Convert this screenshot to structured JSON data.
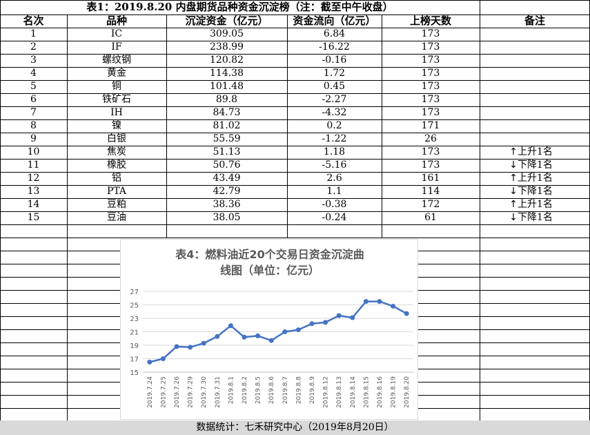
{
  "title": "表1：2019.8.20 内盘期货品种资金沉淀榜（注：截至中午收盘）",
  "headers": [
    "名次",
    "品种",
    "沉淀资金（亿元）",
    "资金流向（亿元）",
    "上榜天数",
    "备注"
  ],
  "rows": [
    {
      "rank": "1",
      "name": "IC",
      "funds": "309.05",
      "flow": "6.84",
      "days": "173",
      "note": "",
      "arrow": ""
    },
    {
      "rank": "2",
      "name": "IF",
      "funds": "238.99",
      "flow": "-16.22",
      "days": "173",
      "note": "",
      "arrow": ""
    },
    {
      "rank": "3",
      "name": "螺纹钢",
      "funds": "120.82",
      "flow": "-0.16",
      "days": "173",
      "note": "",
      "arrow": ""
    },
    {
      "rank": "4",
      "name": "黄金",
      "funds": "114.38",
      "flow": "1.72",
      "days": "173",
      "note": "",
      "arrow": ""
    },
    {
      "rank": "5",
      "name": "铜",
      "funds": "101.48",
      "flow": "0.45",
      "days": "173",
      "note": "",
      "arrow": ""
    },
    {
      "rank": "6",
      "name": "铁矿石",
      "funds": "89.8",
      "flow": "-2.27",
      "days": "173",
      "note": "",
      "arrow": ""
    },
    {
      "rank": "7",
      "name": "IH",
      "funds": "84.73",
      "flow": "-4.32",
      "days": "173",
      "note": "",
      "arrow": ""
    },
    {
      "rank": "8",
      "name": "镍",
      "funds": "81.02",
      "flow": "0.2",
      "days": "171",
      "note": "",
      "arrow": ""
    },
    {
      "rank": "9",
      "name": "白银",
      "funds": "55.59",
      "flow": "-1.22",
      "days": "26",
      "note": "",
      "arrow": ""
    },
    {
      "rank": "10",
      "name": "焦炭",
      "funds": "51.13",
      "flow": "1.18",
      "days": "173",
      "note": "上升1名",
      "arrow": "↑"
    },
    {
      "rank": "11",
      "name": "橡胶",
      "funds": "50.76",
      "flow": "-5.16",
      "days": "173",
      "note": "下降1名",
      "arrow": "↓"
    },
    {
      "rank": "12",
      "name": "铝",
      "funds": "43.49",
      "flow": "2.6",
      "days": "161",
      "note": "上升1名",
      "arrow": "↑"
    },
    {
      "rank": "13",
      "name": "PTA",
      "funds": "42.79",
      "flow": "1.1",
      "days": "114",
      "note": "下降1名",
      "arrow": "↓"
    },
    {
      "rank": "14",
      "name": "豆粕",
      "funds": "38.36",
      "flow": "-0.38",
      "days": "172",
      "note": "上升1名",
      "arrow": "↑"
    },
    {
      "rank": "15",
      "name": "豆油",
      "funds": "38.05",
      "flow": "-0.24",
      "days": "61",
      "note": "下降1名",
      "arrow": "↓"
    }
  ],
  "footer": "数据统计：七禾研究中心（2019年8月20日）",
  "chart_data": {
    "type": "line",
    "title_lines": [
      "表4：燃料油近20个交易日资金沉淀曲",
      "线图（单位：亿元）"
    ],
    "categories": [
      "2019.7.24",
      "2019.7.25",
      "2019.7.26",
      "2019.7.29",
      "2019.7.30",
      "2019.7.31",
      "2019.8.1",
      "2019.8.2",
      "2019.8.5",
      "2019.8.6",
      "2019.8.7",
      "2019.8.8",
      "2019.8.9",
      "2019.8.12",
      "2019.8.13",
      "2019.8.14",
      "2019.8.15",
      "2019.8.16",
      "2019.8.19",
      "2019.8.20"
    ],
    "values": [
      16.5,
      17.0,
      18.8,
      18.7,
      19.3,
      20.3,
      21.9,
      20.2,
      20.4,
      19.7,
      21.0,
      21.3,
      22.2,
      22.4,
      23.4,
      23.1,
      25.5,
      25.5,
      24.8,
      23.7
    ],
    "ylim": [
      15,
      27
    ],
    "yticks": [
      15,
      17,
      19,
      21,
      23,
      25,
      27
    ],
    "grid": true,
    "legend": "none",
    "line_color": "#4472c4"
  }
}
